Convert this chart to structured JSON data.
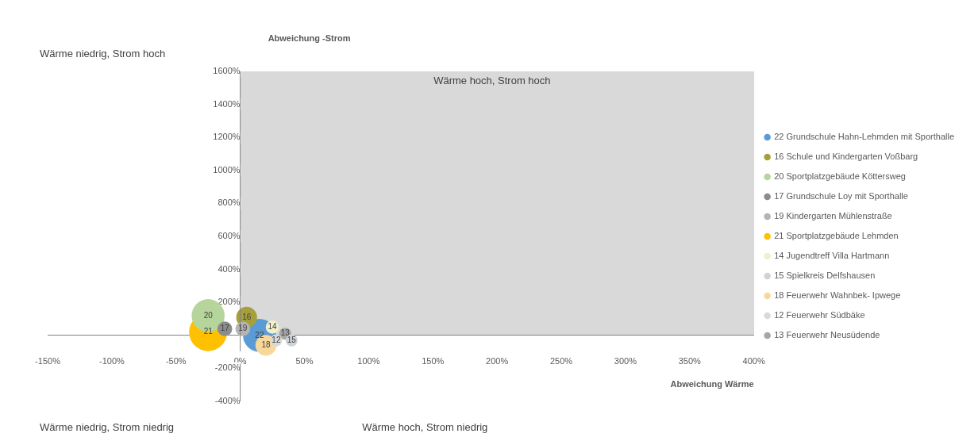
{
  "chart_data": {
    "type": "bubble",
    "xlabel": "Abweichung Wärme",
    "ylabel": "Abweichung -Strom",
    "series": [
      {
        "name": "22 Grundschule Hahn-Lehmden mit Sporthalle",
        "color": "#5b9bd5",
        "x": [
          15
        ],
        "values": [
          0
        ],
        "sizes": [
          0.75
        ]
      },
      {
        "name": "16 Schule und Kindergarten Voßbarg",
        "color": "#a5a03c",
        "x": [
          5
        ],
        "values": [
          110
        ],
        "sizes": [
          0.3
        ]
      },
      {
        "name": "20 Sportplatzgebäude Köttersweg",
        "color": "#b5d59b",
        "x": [
          -25
        ],
        "values": [
          120
        ],
        "sizes": [
          0.75
        ]
      },
      {
        "name": "17 Grundschule Loy mit Sporthalle",
        "color": "#8c8c8c",
        "x": [
          -12
        ],
        "values": [
          40
        ],
        "sizes": [
          0.15
        ]
      },
      {
        "name": "19 Kindergarten Mühlenstraße",
        "color": "#b4b4b4",
        "x": [
          2
        ],
        "values": [
          40
        ],
        "sizes": [
          0.15
        ]
      },
      {
        "name": "21 Sportplatzgebäude Lehmden",
        "color": "#ffc000",
        "x": [
          -25
        ],
        "values": [
          20
        ],
        "sizes": [
          1
        ]
      },
      {
        "name": "14 Jugendtreff Villa Hartmann",
        "color": "#f2f0cc",
        "x": [
          25
        ],
        "values": [
          50
        ],
        "sizes": [
          0.12
        ]
      },
      {
        "name": "15 Spielkreis Delfshausen",
        "color": "#cfd3d8",
        "x": [
          40
        ],
        "values": [
          -30
        ],
        "sizes": [
          0.1
        ]
      },
      {
        "name": "18 Feuerwehr Wahnbek- Ipwege",
        "color": "#f8d89a",
        "x": [
          20
        ],
        "values": [
          -60
        ],
        "sizes": [
          0.3
        ]
      },
      {
        "name": "12 Feuerwehr Südbäke",
        "color": "#d9d9d9",
        "x": [
          28
        ],
        "values": [
          -30
        ],
        "sizes": [
          0.1
        ]
      },
      {
        "name": "13 Feuerwehr Neusüdende",
        "color": "#a6a6a6",
        "x": [
          35
        ],
        "values": [
          10
        ],
        "sizes": [
          0.1
        ]
      }
    ],
    "xlim": [
      -150,
      400
    ],
    "xticks": [
      {
        "value": -150,
        "label": "-150%"
      },
      {
        "value": -100,
        "label": "-100%"
      },
      {
        "value": -50,
        "label": "-50%"
      },
      {
        "value": 0,
        "label": "0%"
      },
      {
        "value": 50,
        "label": "50%"
      },
      {
        "value": 100,
        "label": "100%"
      },
      {
        "value": 150,
        "label": "150%"
      },
      {
        "value": 200,
        "label": "200%"
      },
      {
        "value": 250,
        "label": "250%"
      },
      {
        "value": 300,
        "label": "300%"
      },
      {
        "value": 350,
        "label": "350%"
      },
      {
        "value": 400,
        "label": "400%"
      }
    ],
    "ylim": [
      -400,
      1600
    ],
    "yticks": [
      {
        "value": -400,
        "label": "-400%"
      },
      {
        "value": -200,
        "label": "-200%"
      },
      {
        "value": 0,
        "label": null
      },
      {
        "value": 200,
        "label": "200%"
      },
      {
        "value": 400,
        "label": "400%"
      },
      {
        "value": 600,
        "label": "600%"
      },
      {
        "value": 800,
        "label": "800%"
      },
      {
        "value": 1000,
        "label": "1000%"
      },
      {
        "value": 1200,
        "label": "1200%"
      },
      {
        "value": 1400,
        "label": "1400%"
      },
      {
        "value": 1600,
        "label": "1600%"
      }
    ],
    "annotations": [
      "Wärme niedrig, Strom hoch",
      "Wärme hoch, Strom hoch",
      "Wärme niedrig, Strom niedrig",
      "Wärme hoch, Strom niedrig",
      {
        "text": "22",
        "x": 15,
        "y": 0
      },
      {
        "text": "16",
        "x": 5,
        "y": 110
      },
      {
        "text": "20",
        "x": -25,
        "y": 120
      },
      {
        "text": "17",
        "x": -12,
        "y": 40
      },
      {
        "text": "19",
        "x": 2,
        "y": 40
      },
      {
        "text": "21",
        "x": -25,
        "y": 20
      },
      {
        "text": "14",
        "x": 25,
        "y": 50
      },
      {
        "text": "15",
        "x": 40,
        "y": -30
      },
      {
        "text": "18",
        "x": 20,
        "y": -60
      },
      {
        "text": "12",
        "x": 28,
        "y": -30
      },
      {
        "text": "13",
        "x": 35,
        "y": 10
      }
    ],
    "grid": false,
    "legend": "right",
    "marker": "circle"
  }
}
